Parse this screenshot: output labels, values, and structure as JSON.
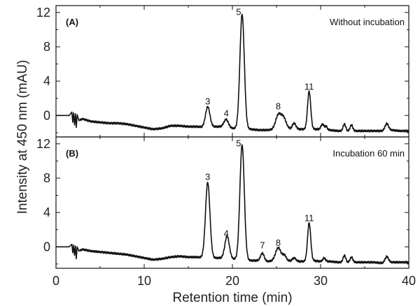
{
  "chart_data": {
    "type": "line",
    "xlabel": "Retention time (min)",
    "ylabel": "Intensity at 450 nm (mAU)",
    "xlim": [
      0,
      40
    ],
    "x_ticks": [
      "0",
      "10",
      "20",
      "30",
      "40"
    ],
    "panels": [
      {
        "label": "(A)",
        "title": "Without incubation",
        "ylim": [
          -2.5,
          12.8
        ],
        "y_ticks": [
          "0",
          "4",
          "8",
          "12"
        ],
        "y_tick_values": [
          0,
          4,
          8,
          12
        ],
        "baseline": [
          [
            0,
            0
          ],
          [
            1.5,
            0
          ],
          [
            1.8,
            0.4
          ],
          [
            1.9,
            -0.8
          ],
          [
            2.0,
            0.3
          ],
          [
            2.1,
            -1.1
          ],
          [
            2.2,
            0.2
          ],
          [
            2.3,
            -1.4
          ],
          [
            2.4,
            0.1
          ],
          [
            2.6,
            -0.6
          ],
          [
            3,
            -0.4
          ],
          [
            4,
            -0.7
          ],
          [
            5,
            -0.8
          ],
          [
            6,
            -0.9
          ],
          [
            7,
            -0.9
          ],
          [
            8,
            -1.0
          ],
          [
            9,
            -1.2
          ],
          [
            10,
            -1.4
          ],
          [
            11,
            -1.6
          ],
          [
            12,
            -1.5
          ],
          [
            13,
            -1.2
          ],
          [
            14,
            -1.2
          ],
          [
            15,
            -1.3
          ],
          [
            16,
            -1.3
          ],
          [
            17,
            -1.4
          ],
          [
            18,
            -1.3
          ],
          [
            19,
            -1.3
          ],
          [
            20,
            -1.5
          ],
          [
            21,
            -1.5
          ],
          [
            22,
            -1.6
          ],
          [
            23,
            -1.7
          ],
          [
            24,
            -1.7
          ],
          [
            25,
            -1.6
          ],
          [
            26,
            -1.6
          ],
          [
            27,
            -1.6
          ],
          [
            28,
            -1.6
          ],
          [
            29,
            -1.6
          ],
          [
            30,
            -1.6
          ],
          [
            31,
            -1.7
          ],
          [
            32,
            -1.8
          ],
          [
            33,
            -1.8
          ],
          [
            34,
            -1.8
          ],
          [
            35,
            -1.8
          ],
          [
            36,
            -1.8
          ],
          [
            37,
            -1.8
          ],
          [
            38,
            -1.7
          ],
          [
            39,
            -1.8
          ],
          [
            40,
            -1.8
          ]
        ],
        "peaks": [
          {
            "center": 17.2,
            "height": 2.4,
            "width": 0.25
          },
          {
            "center": 19.3,
            "height": 0.9,
            "width": 0.25
          },
          {
            "center": 21.1,
            "height": 13.3,
            "width": 0.25
          },
          {
            "center": 25.2,
            "height": 1.6,
            "width": 0.3
          },
          {
            "center": 25.8,
            "height": 1.3,
            "width": 0.3
          },
          {
            "center": 27.0,
            "height": 0.7,
            "width": 0.2
          },
          {
            "center": 28.7,
            "height": 4.4,
            "width": 0.18
          },
          {
            "center": 30.2,
            "height": 0.6,
            "width": 0.15
          },
          {
            "center": 30.6,
            "height": 0.4,
            "width": 0.15
          },
          {
            "center": 32.7,
            "height": 0.8,
            "width": 0.15
          },
          {
            "center": 33.5,
            "height": 0.7,
            "width": 0.15
          },
          {
            "center": 37.5,
            "height": 0.8,
            "width": 0.2
          }
        ],
        "peak_labels": [
          {
            "text": "3",
            "x": 17.2,
            "y": 1.3
          },
          {
            "text": "4",
            "x": 19.3,
            "y": -0.1
          },
          {
            "text": "5",
            "x": 20.7,
            "y": 11.7
          },
          {
            "text": "8",
            "x": 25.2,
            "y": 0.7
          },
          {
            "text": "11",
            "x": 28.7,
            "y": 3.0
          }
        ]
      },
      {
        "label": "(B)",
        "title": "Incubation 60 min",
        "ylim": [
          -2.5,
          12.8
        ],
        "y_ticks": [
          "0",
          "4",
          "8",
          "12"
        ],
        "y_tick_values": [
          0,
          4,
          8,
          12
        ],
        "baseline": [
          [
            0,
            0
          ],
          [
            1.5,
            0
          ],
          [
            1.8,
            0.3
          ],
          [
            1.9,
            -0.7
          ],
          [
            2.0,
            0.2
          ],
          [
            2.1,
            -1.0
          ],
          [
            2.2,
            0.1
          ],
          [
            2.3,
            -1.4
          ],
          [
            2.4,
            0.0
          ],
          [
            2.6,
            -0.5
          ],
          [
            3,
            -0.3
          ],
          [
            4,
            -0.5
          ],
          [
            5,
            -0.6
          ],
          [
            6,
            -0.7
          ],
          [
            7,
            -0.8
          ],
          [
            8,
            -0.9
          ],
          [
            9,
            -1.1
          ],
          [
            10,
            -1.3
          ],
          [
            11,
            -1.5
          ],
          [
            12,
            -1.4
          ],
          [
            13,
            -1.2
          ],
          [
            14,
            -1.1
          ],
          [
            15,
            -1.2
          ],
          [
            16,
            -1.2
          ],
          [
            17,
            -1.3
          ],
          [
            18,
            -1.3
          ],
          [
            19,
            -1.3
          ],
          [
            20,
            -1.4
          ],
          [
            21,
            -1.5
          ],
          [
            22,
            -1.6
          ],
          [
            23,
            -1.6
          ],
          [
            24,
            -1.7
          ],
          [
            25,
            -1.6
          ],
          [
            26,
            -1.6
          ],
          [
            27,
            -1.7
          ],
          [
            28,
            -1.7
          ],
          [
            29,
            -1.6
          ],
          [
            30,
            -1.7
          ],
          [
            31,
            -1.7
          ],
          [
            32,
            -1.8
          ],
          [
            33,
            -1.8
          ],
          [
            34,
            -1.8
          ],
          [
            35,
            -1.8
          ],
          [
            36,
            -1.8
          ],
          [
            37,
            -1.9
          ],
          [
            38,
            -1.8
          ],
          [
            39,
            -1.8
          ],
          [
            40,
            -1.8
          ]
        ],
        "peaks": [
          {
            "center": 17.2,
            "height": 8.8,
            "width": 0.25
          },
          {
            "center": 19.4,
            "height": 2.6,
            "width": 0.25
          },
          {
            "center": 21.1,
            "height": 13.4,
            "width": 0.25
          },
          {
            "center": 23.4,
            "height": 0.9,
            "width": 0.2
          },
          {
            "center": 25.2,
            "height": 1.5,
            "width": 0.3
          },
          {
            "center": 25.9,
            "height": 0.6,
            "width": 0.2
          },
          {
            "center": 27.0,
            "height": 0.4,
            "width": 0.2
          },
          {
            "center": 28.7,
            "height": 4.4,
            "width": 0.18
          },
          {
            "center": 30.4,
            "height": 0.4,
            "width": 0.15
          },
          {
            "center": 32.7,
            "height": 0.8,
            "width": 0.15
          },
          {
            "center": 33.5,
            "height": 0.6,
            "width": 0.15
          },
          {
            "center": 37.5,
            "height": 0.7,
            "width": 0.2
          }
        ],
        "peak_labels": [
          {
            "text": "3",
            "x": 17.2,
            "y": 7.8
          },
          {
            "text": "4",
            "x": 19.3,
            "y": 1.2
          },
          {
            "text": "5",
            "x": 20.7,
            "y": 11.7
          },
          {
            "text": "7",
            "x": 23.4,
            "y": -0.2
          },
          {
            "text": "8",
            "x": 25.2,
            "y": 0.1
          },
          {
            "text": "11",
            "x": 28.7,
            "y": 3.0
          }
        ]
      }
    ],
    "line_color": "#111111"
  }
}
